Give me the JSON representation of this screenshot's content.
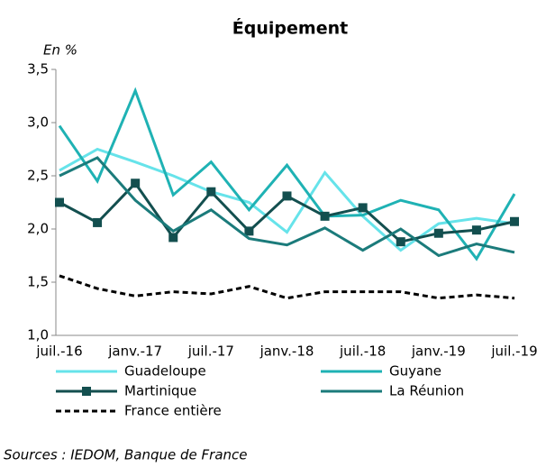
{
  "chart_data": {
    "type": "line",
    "title": "Équipement",
    "ylabel": "En %",
    "source": "Sources : IEDOM, Banque de France",
    "categories": [
      "juil.-16",
      null,
      "janv.-17",
      null,
      "juil.-17",
      null,
      "janv.-18",
      null,
      "juil.-18",
      null,
      "janv.-19",
      null,
      "juil.-19"
    ],
    "series": [
      {
        "name": "Guadeloupe",
        "color": "#66e3ea",
        "values": [
          2.55,
          2.75,
          2.63,
          2.5,
          2.35,
          2.25,
          1.97,
          2.53,
          2.12,
          1.8,
          2.05,
          2.1,
          2.05
        ]
      },
      {
        "name": "Guyane",
        "color": "#1fb2b4",
        "values": [
          2.97,
          2.45,
          3.3,
          2.32,
          2.63,
          2.18,
          2.6,
          2.12,
          2.13,
          2.27,
          2.18,
          1.72,
          2.33
        ]
      },
      {
        "name": "Martinique",
        "color": "#134f4f",
        "marker": "square",
        "values": [
          2.25,
          2.06,
          2.43,
          1.92,
          2.35,
          1.98,
          2.31,
          2.12,
          2.2,
          1.88,
          1.96,
          1.99,
          2.07
        ]
      },
      {
        "name": "La Réunion",
        "color": "#1b7b7b",
        "values": [
          2.5,
          2.67,
          2.27,
          1.98,
          2.18,
          1.91,
          1.85,
          2.01,
          1.8,
          2.0,
          1.75,
          1.86,
          1.78
        ]
      },
      {
        "name": "France entière",
        "color": "#000000",
        "line_style": "dashed",
        "values": [
          1.56,
          1.44,
          1.37,
          1.41,
          1.39,
          1.46,
          1.35,
          1.41,
          1.41,
          1.41,
          1.35,
          1.38,
          1.35
        ]
      }
    ],
    "ylim": [
      1.0,
      3.5
    ],
    "yticks": [
      {
        "value": 1.0,
        "label": "1,0"
      },
      {
        "value": 1.5,
        "label": "1,5"
      },
      {
        "value": 2.0,
        "label": "2,0"
      },
      {
        "value": 2.5,
        "label": "2,5"
      },
      {
        "value": 3.0,
        "label": "3,0"
      },
      {
        "value": 3.5,
        "label": "3,5"
      }
    ],
    "grid": false
  }
}
